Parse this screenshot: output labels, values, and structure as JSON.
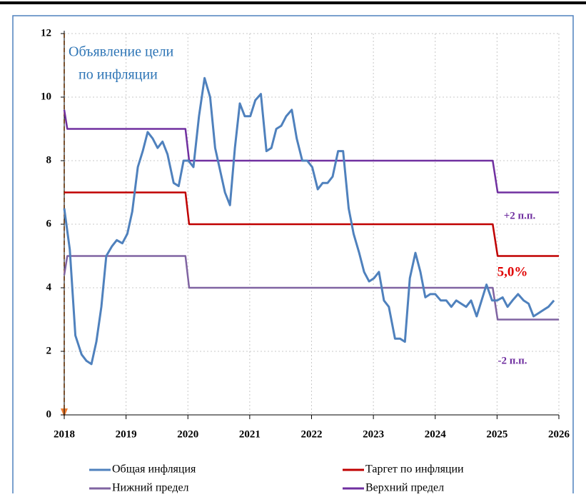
{
  "chart_data": {
    "type": "line",
    "xlim": [
      2018,
      2026
    ],
    "xticks": [
      2018,
      2019,
      2020,
      2021,
      2022,
      2023,
      2024,
      2025,
      2026
    ],
    "ylim": [
      0,
      12
    ],
    "yticks": [
      0,
      2,
      4,
      6,
      8,
      10,
      12
    ],
    "grid": true,
    "annotations": [
      {
        "text": "Объявление цели",
        "color": "#2e75b6"
      },
      {
        "text": "по инфляции",
        "color": "#2e75b6"
      },
      {
        "text": "+2 п.п.",
        "color": "#7030a0"
      },
      {
        "text": "5,0%",
        "color": "#e00000"
      },
      {
        "text": "-2 п.п.",
        "color": "#7030a0"
      }
    ],
    "series": [
      {
        "name": "Общая инфляция",
        "color": "#4f81bd",
        "x": [
          2018.0,
          2018.09,
          2018.18,
          2018.28,
          2018.36,
          2018.44,
          2018.52,
          2018.6,
          2018.68,
          2018.77,
          2018.85,
          2018.94,
          2019.02,
          2019.1,
          2019.19,
          2019.27,
          2019.35,
          2019.43,
          2019.51,
          2019.59,
          2019.67,
          2019.77,
          2019.85,
          2019.93,
          2020.01,
          2020.09,
          2020.18,
          2020.27,
          2020.36,
          2020.44,
          2020.52,
          2020.6,
          2020.68,
          2020.76,
          2020.84,
          2020.92,
          2021.01,
          2021.09,
          2021.18,
          2021.27,
          2021.35,
          2021.43,
          2021.51,
          2021.59,
          2021.68,
          2021.76,
          2021.85,
          2021.93,
          2022.01,
          2022.1,
          2022.18,
          2022.26,
          2022.34,
          2022.43,
          2022.51,
          2022.6,
          2022.68,
          2022.77,
          2022.85,
          2022.93,
          2023.01,
          2023.09,
          2023.17,
          2023.25,
          2023.35,
          2023.43,
          2023.51,
          2023.59,
          2023.68,
          2023.76,
          2023.84,
          2023.92,
          2024.0,
          2024.09,
          2024.18,
          2024.26,
          2024.34,
          2024.42,
          2024.5,
          2024.58,
          2024.67,
          2024.75,
          2024.83,
          2024.92,
          2025.0,
          2025.09,
          2025.17,
          2025.25,
          2025.34,
          2025.43,
          2025.51,
          2025.59,
          2025.67,
          2025.75,
          2025.83,
          2025.92
        ],
        "values": [
          6.5,
          5.2,
          2.5,
          1.9,
          1.7,
          1.6,
          2.3,
          3.4,
          5.0,
          5.3,
          5.5,
          5.4,
          5.7,
          6.4,
          7.8,
          8.3,
          8.9,
          8.7,
          8.4,
          8.6,
          8.2,
          7.3,
          7.2,
          8.0,
          8.0,
          7.8,
          9.4,
          10.6,
          10.0,
          8.4,
          7.7,
          7.0,
          6.6,
          8.4,
          9.8,
          9.4,
          9.4,
          9.9,
          10.1,
          8.3,
          8.4,
          9.0,
          9.1,
          9.4,
          9.6,
          8.7,
          8.0,
          8.0,
          7.8,
          7.1,
          7.3,
          7.3,
          7.5,
          8.3,
          8.3,
          6.5,
          5.7,
          5.1,
          4.5,
          4.2,
          4.3,
          4.5,
          3.6,
          3.4,
          2.4,
          2.4,
          2.3,
          4.3,
          5.1,
          4.5,
          3.7,
          3.8,
          3.8,
          3.6,
          3.6,
          3.4,
          3.6,
          3.5,
          3.4,
          3.6,
          3.1,
          3.6,
          4.1,
          3.6,
          3.6,
          3.7,
          3.4,
          3.6,
          3.8,
          3.6,
          3.5,
          3.1,
          3.2,
          3.3,
          3.4,
          3.6
        ]
      },
      {
        "name": "Таргет по инфляции",
        "color": "#c00000",
        "x": [
          2018.0,
          2019.96,
          2020.02,
          2024.93,
          2025.01,
          2026.0
        ],
        "values": [
          7,
          7,
          6,
          6,
          5,
          5
        ]
      },
      {
        "name": "Нижний предел",
        "color": "#8064a2",
        "x": [
          2018.0,
          2018.05,
          2019.96,
          2020.02,
          2024.93,
          2025.01,
          2026.0
        ],
        "values": [
          4.4,
          5,
          5,
          4,
          4,
          3,
          3
        ]
      },
      {
        "name": "Верхний предел",
        "color": "#7030a0",
        "x": [
          2018.0,
          2018.05,
          2019.96,
          2020.02,
          2024.93,
          2025.01,
          2026.0
        ],
        "values": [
          9.6,
          9,
          9,
          8,
          8,
          7,
          7
        ]
      }
    ]
  }
}
